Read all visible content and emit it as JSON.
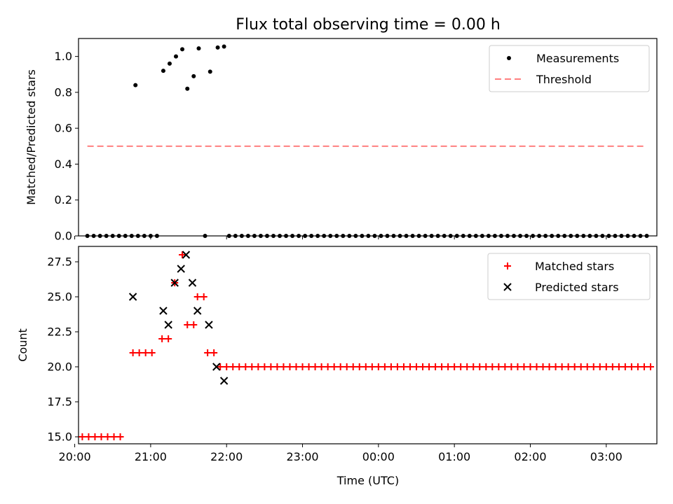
{
  "title": "Flux total observing time = 0.00 h",
  "chart_data": [
    {
      "type": "scatter",
      "ylabel": "Matched/Predicted stars",
      "xlim": [
        "20:03",
        "03:40"
      ],
      "ylim": [
        0,
        1.1
      ],
      "yticks": [
        0.0,
        0.2,
        0.4,
        0.6,
        0.8,
        1.0
      ],
      "ytick_labels": [
        "0.0",
        "0.2",
        "0.4",
        "0.6",
        "0.8",
        "1.0"
      ],
      "legend_position": "upper right",
      "series": [
        {
          "name": "Measurements",
          "marker": "dot",
          "color": "#000000",
          "points": [
            [
              "20:10",
              0
            ],
            [
              "20:15",
              0
            ],
            [
              "20:20",
              0
            ],
            [
              "20:25",
              0
            ],
            [
              "20:30",
              0
            ],
            [
              "20:35",
              0
            ],
            [
              "20:40",
              0
            ],
            [
              "20:45",
              0
            ],
            [
              "20:50",
              0
            ],
            [
              "20:55",
              0
            ],
            [
              "21:00",
              0
            ],
            [
              "21:05",
              0
            ],
            [
              "20:48",
              0.84
            ],
            [
              "21:10",
              0.92
            ],
            [
              "21:15",
              0.96
            ],
            [
              "21:20",
              1.0
            ],
            [
              "21:25",
              1.04
            ],
            [
              "21:29",
              0.82
            ],
            [
              "21:34",
              0.89
            ],
            [
              "21:38",
              1.045
            ],
            [
              "21:43",
              0
            ],
            [
              "21:47",
              0.915
            ],
            [
              "21:53",
              1.05
            ],
            [
              "21:58",
              1.055
            ],
            [
              "22:02",
              0
            ],
            [
              "22:07",
              0
            ],
            [
              "22:12",
              0
            ],
            [
              "22:17",
              0
            ],
            [
              "22:22",
              0
            ],
            [
              "22:27",
              0
            ],
            [
              "22:32",
              0
            ],
            [
              "22:37",
              0
            ],
            [
              "22:42",
              0
            ],
            [
              "22:47",
              0
            ],
            [
              "22:52",
              0
            ],
            [
              "22:57",
              0
            ],
            [
              "23:02",
              0
            ],
            [
              "23:07",
              0
            ],
            [
              "23:12",
              0
            ],
            [
              "23:17",
              0
            ],
            [
              "23:22",
              0
            ],
            [
              "23:27",
              0
            ],
            [
              "23:32",
              0
            ],
            [
              "23:37",
              0
            ],
            [
              "23:42",
              0
            ],
            [
              "23:47",
              0
            ],
            [
              "23:52",
              0
            ],
            [
              "23:57",
              0
            ],
            [
              "00:02",
              0
            ],
            [
              "00:07",
              0
            ],
            [
              "00:12",
              0
            ],
            [
              "00:17",
              0
            ],
            [
              "00:22",
              0
            ],
            [
              "00:27",
              0
            ],
            [
              "00:32",
              0
            ],
            [
              "00:37",
              0
            ],
            [
              "00:42",
              0
            ],
            [
              "00:47",
              0
            ],
            [
              "00:52",
              0
            ],
            [
              "00:57",
              0
            ],
            [
              "01:02",
              0
            ],
            [
              "01:07",
              0
            ],
            [
              "01:12",
              0
            ],
            [
              "01:17",
              0
            ],
            [
              "01:22",
              0
            ],
            [
              "01:27",
              0
            ],
            [
              "01:32",
              0
            ],
            [
              "01:37",
              0
            ],
            [
              "01:42",
              0
            ],
            [
              "01:47",
              0
            ],
            [
              "01:52",
              0
            ],
            [
              "01:57",
              0
            ],
            [
              "02:02",
              0
            ],
            [
              "02:07",
              0
            ],
            [
              "02:12",
              0
            ],
            [
              "02:17",
              0
            ],
            [
              "02:22",
              0
            ],
            [
              "02:27",
              0
            ],
            [
              "02:32",
              0
            ],
            [
              "02:37",
              0
            ],
            [
              "02:42",
              0
            ],
            [
              "02:47",
              0
            ],
            [
              "02:52",
              0
            ],
            [
              "02:57",
              0
            ],
            [
              "03:02",
              0
            ],
            [
              "03:07",
              0
            ],
            [
              "03:12",
              0
            ],
            [
              "03:17",
              0
            ],
            [
              "03:22",
              0
            ],
            [
              "03:27",
              0
            ],
            [
              "03:32",
              0
            ]
          ]
        },
        {
          "name": "Threshold",
          "marker": "dashed-line",
          "color": "#ff7f7f",
          "points": [
            [
              "20:10",
              0.5
            ],
            [
              "03:32",
              0.5
            ]
          ]
        }
      ]
    },
    {
      "type": "scatter",
      "xlabel": "Time (UTC)",
      "ylabel": "Count",
      "xlim": [
        "20:03",
        "03:40"
      ],
      "ylim": [
        14.5,
        28.6
      ],
      "xticks": [
        "20:00",
        "21:00",
        "22:00",
        "23:00",
        "00:00",
        "01:00",
        "02:00",
        "03:00"
      ],
      "yticks": [
        15.0,
        17.5,
        20.0,
        22.5,
        25.0,
        27.5
      ],
      "ytick_labels": [
        "15.0",
        "17.5",
        "20.0",
        "22.5",
        "25.0",
        "27.5"
      ],
      "legend_position": "upper right",
      "series": [
        {
          "name": "Matched stars",
          "marker": "plus",
          "color": "#ff0000",
          "points": [
            [
              "20:06",
              15
            ],
            [
              "20:11",
              15
            ],
            [
              "20:16",
              15
            ],
            [
              "20:21",
              15
            ],
            [
              "20:26",
              15
            ],
            [
              "20:31",
              15
            ],
            [
              "20:36",
              15
            ],
            [
              "20:46",
              21
            ],
            [
              "20:51",
              21
            ],
            [
              "20:56",
              21
            ],
            [
              "21:01",
              21
            ],
            [
              "21:09",
              22
            ],
            [
              "21:14",
              22
            ],
            [
              "21:19",
              26
            ],
            [
              "21:25",
              28
            ],
            [
              "21:29",
              23
            ],
            [
              "21:34",
              23
            ],
            [
              "21:37",
              25
            ],
            [
              "21:42",
              25
            ],
            [
              "21:45",
              21
            ],
            [
              "21:50",
              21
            ],
            [
              "21:55",
              20
            ],
            [
              "22:00",
              20
            ],
            [
              "22:05",
              20
            ],
            [
              "22:10",
              20
            ],
            [
              "22:15",
              20
            ],
            [
              "22:20",
              20
            ],
            [
              "22:25",
              20
            ],
            [
              "22:30",
              20
            ],
            [
              "22:35",
              20
            ],
            [
              "22:40",
              20
            ],
            [
              "22:45",
              20
            ],
            [
              "22:50",
              20
            ],
            [
              "22:55",
              20
            ],
            [
              "23:00",
              20
            ],
            [
              "23:05",
              20
            ],
            [
              "23:10",
              20
            ],
            [
              "23:15",
              20
            ],
            [
              "23:20",
              20
            ],
            [
              "23:25",
              20
            ],
            [
              "23:30",
              20
            ],
            [
              "23:35",
              20
            ],
            [
              "23:40",
              20
            ],
            [
              "23:45",
              20
            ],
            [
              "23:50",
              20
            ],
            [
              "23:55",
              20
            ],
            [
              "00:00",
              20
            ],
            [
              "00:05",
              20
            ],
            [
              "00:10",
              20
            ],
            [
              "00:15",
              20
            ],
            [
              "00:20",
              20
            ],
            [
              "00:25",
              20
            ],
            [
              "00:30",
              20
            ],
            [
              "00:35",
              20
            ],
            [
              "00:40",
              20
            ],
            [
              "00:45",
              20
            ],
            [
              "00:50",
              20
            ],
            [
              "00:55",
              20
            ],
            [
              "01:00",
              20
            ],
            [
              "01:05",
              20
            ],
            [
              "01:10",
              20
            ],
            [
              "01:15",
              20
            ],
            [
              "01:20",
              20
            ],
            [
              "01:25",
              20
            ],
            [
              "01:30",
              20
            ],
            [
              "01:35",
              20
            ],
            [
              "01:40",
              20
            ],
            [
              "01:45",
              20
            ],
            [
              "01:50",
              20
            ],
            [
              "01:55",
              20
            ],
            [
              "02:00",
              20
            ],
            [
              "02:05",
              20
            ],
            [
              "02:10",
              20
            ],
            [
              "02:15",
              20
            ],
            [
              "02:20",
              20
            ],
            [
              "02:25",
              20
            ],
            [
              "02:30",
              20
            ],
            [
              "02:35",
              20
            ],
            [
              "02:40",
              20
            ],
            [
              "02:45",
              20
            ],
            [
              "02:50",
              20
            ],
            [
              "02:55",
              20
            ],
            [
              "03:00",
              20
            ],
            [
              "03:05",
              20
            ],
            [
              "03:10",
              20
            ],
            [
              "03:15",
              20
            ],
            [
              "03:20",
              20
            ],
            [
              "03:25",
              20
            ],
            [
              "03:30",
              20
            ],
            [
              "03:35",
              20
            ]
          ]
        },
        {
          "name": "Predicted stars",
          "marker": "x",
          "color": "#000000",
          "points": [
            [
              "20:46",
              25
            ],
            [
              "21:10",
              24
            ],
            [
              "21:14",
              23
            ],
            [
              "21:19",
              26
            ],
            [
              "21:24",
              27
            ],
            [
              "21:28",
              28
            ],
            [
              "21:33",
              26
            ],
            [
              "21:37",
              24
            ],
            [
              "21:46",
              23
            ],
            [
              "21:52",
              20
            ],
            [
              "21:58",
              19
            ]
          ]
        }
      ]
    }
  ]
}
